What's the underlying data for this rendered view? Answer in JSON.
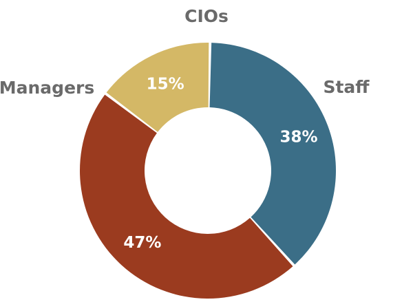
{
  "chart_data": {
    "type": "pie",
    "variant": "donut",
    "title": "",
    "series": [
      {
        "name": "",
        "slices": [
          {
            "label": "CIOs",
            "value": 15,
            "value_label": "15%",
            "color": "#d4b866"
          },
          {
            "label": "Staff",
            "value": 38,
            "value_label": "38%",
            "color": "#3b6e87"
          },
          {
            "label": "Managers",
            "value": 47,
            "value_label": "47%",
            "color": "#9b3b1f"
          }
        ]
      }
    ],
    "legend": "none",
    "grid": false
  }
}
